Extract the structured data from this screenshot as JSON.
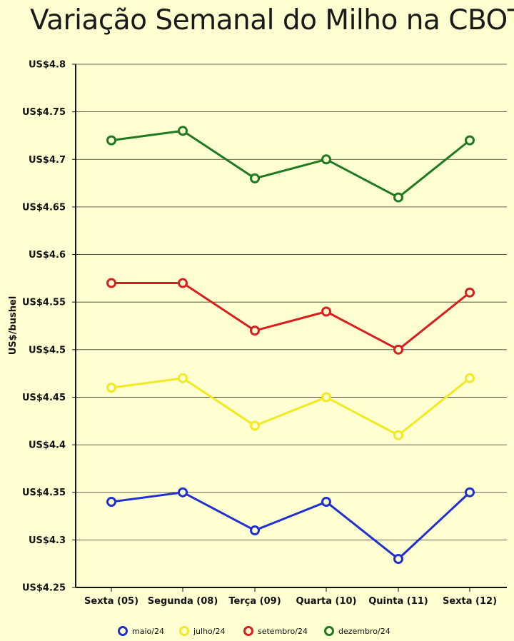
{
  "chart_data": {
    "type": "line",
    "title": "Variação Semanal do Milho na CBOT",
    "xlabel": "",
    "ylabel": "US$/bushel",
    "categories": [
      "Sexta (05)",
      "Segunda (08)",
      "Terça (09)",
      "Quarta (10)",
      "Quinta (11)",
      "Sexta (12)"
    ],
    "ylim": [
      4.25,
      4.8
    ],
    "yticks": [
      4.25,
      4.3,
      4.35,
      4.4,
      4.45,
      4.5,
      4.55,
      4.6,
      4.65,
      4.7,
      4.75,
      4.8
    ],
    "ytick_labels": [
      "US$4.25",
      "US$4.3",
      "US$4.35",
      "US$4.4",
      "US$4.45",
      "US$4.5",
      "US$4.55",
      "US$4.6",
      "US$4.65",
      "US$4.7",
      "US$4.75",
      "US$4.8"
    ],
    "grid": true,
    "legend_position": "bottom",
    "series": [
      {
        "name": "maio/24",
        "color": "#1f2fd0",
        "values": [
          4.34,
          4.35,
          4.31,
          4.34,
          4.28,
          4.35
        ]
      },
      {
        "name": "julho/24",
        "color": "#f2ea21",
        "values": [
          4.46,
          4.47,
          4.42,
          4.45,
          4.41,
          4.47
        ]
      },
      {
        "name": "setembro/24",
        "color": "#d81e1e",
        "values": [
          4.57,
          4.57,
          4.52,
          4.54,
          4.5,
          4.56
        ]
      },
      {
        "name": "dezembro/24",
        "color": "#1f7a1f",
        "values": [
          4.72,
          4.73,
          4.68,
          4.7,
          4.66,
          4.72
        ]
      }
    ]
  }
}
